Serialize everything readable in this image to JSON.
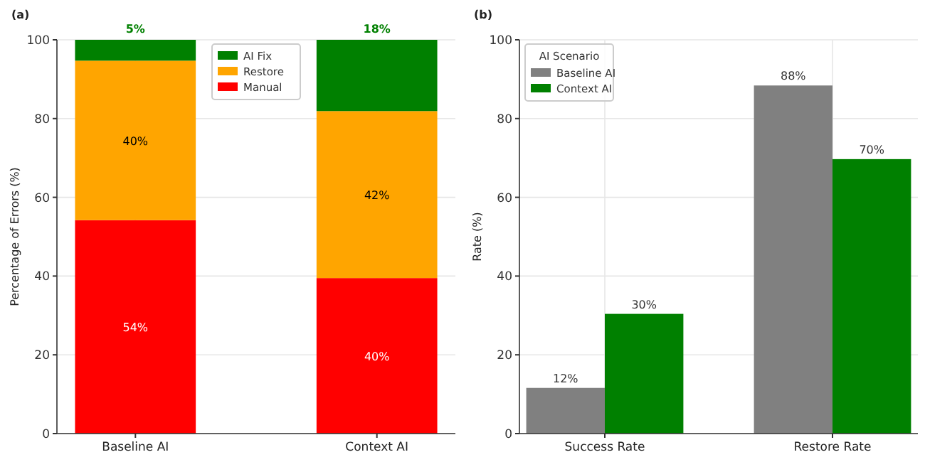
{
  "chart_data": [
    {
      "type": "bar",
      "title": "(a)",
      "ylabel": "Percentage of Errors (%)",
      "categories": [
        "Baseline AI",
        "Context AI"
      ],
      "stacked": true,
      "series": [
        {
          "name": "Manual",
          "color": "#ff0000",
          "values": [
            54.2,
            39.5
          ],
          "value_labels": [
            "54%",
            "40%"
          ]
        },
        {
          "name": "Restore",
          "color": "#ffa500",
          "values": [
            40.5,
            42.4
          ],
          "value_labels": [
            "40%",
            "42%"
          ]
        },
        {
          "name": "AI Fix",
          "color": "#008000",
          "values": [
            5.3,
            18.1
          ],
          "value_labels": [
            "5%",
            "18%"
          ]
        }
      ],
      "ylim": [
        0,
        100
      ],
      "yticks": [
        0,
        20,
        40,
        60,
        80,
        100
      ],
      "grid": true,
      "legend": "top"
    },
    {
      "type": "bar",
      "title": "(b)",
      "ylabel": "Rate (%)",
      "legend_title": "AI Scenario",
      "categories": [
        "Success Rate",
        "Restore Rate"
      ],
      "series": [
        {
          "name": "Baseline AI",
          "color": "#808080",
          "values": [
            11.6,
            88.4
          ],
          "value_labels": [
            "12%",
            "88%"
          ]
        },
        {
          "name": "Context AI",
          "color": "#008000",
          "values": [
            30.4,
            69.7
          ],
          "value_labels": [
            "30%",
            "70%"
          ]
        }
      ],
      "ylim": [
        0,
        100
      ],
      "yticks": [
        0,
        20,
        40,
        60,
        80,
        100
      ],
      "grid": true,
      "legend": "top left"
    }
  ]
}
